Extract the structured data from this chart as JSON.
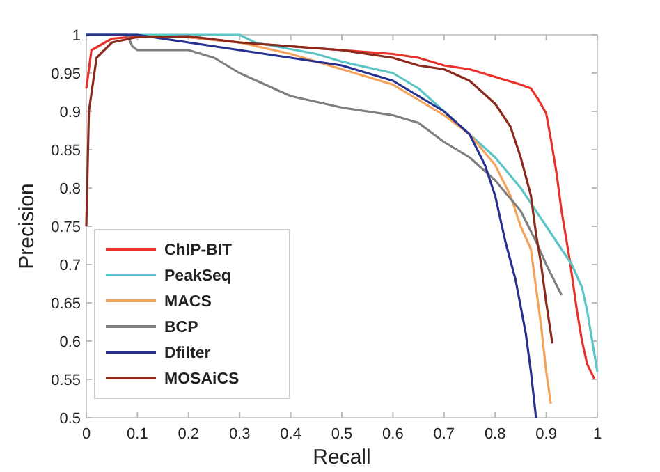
{
  "chart_data": {
    "type": "line",
    "xlabel": "Recall",
    "ylabel": "Precision",
    "xlim": [
      0,
      1
    ],
    "ylim": [
      0.5,
      1
    ],
    "xticks": [
      0,
      0.1,
      0.2,
      0.3,
      0.4,
      0.5,
      0.6,
      0.7,
      0.8,
      0.9,
      1
    ],
    "yticks": [
      0.5,
      0.55,
      0.6,
      0.65,
      0.7,
      0.75,
      0.8,
      0.85,
      0.9,
      0.95,
      1
    ],
    "grid": false,
    "legend": "bottom left",
    "marker": "none",
    "line_style": "solid",
    "series": [
      {
        "name": "ChIP-BIT",
        "color": "#e8312a",
        "x": [
          0,
          0.01,
          0.05,
          0.1,
          0.2,
          0.3,
          0.4,
          0.5,
          0.6,
          0.65,
          0.7,
          0.75,
          0.8,
          0.85,
          0.87,
          0.885,
          0.9,
          0.91,
          0.92,
          0.93,
          0.946,
          0.96,
          0.97,
          0.98,
          0.994
        ],
        "values": [
          0.93,
          0.98,
          0.995,
          0.998,
          0.997,
          0.99,
          0.985,
          0.98,
          0.975,
          0.97,
          0.96,
          0.955,
          0.945,
          0.935,
          0.93,
          0.915,
          0.897,
          0.86,
          0.82,
          0.77,
          0.706,
          0.64,
          0.6,
          0.57,
          0.551
        ]
      },
      {
        "name": "PeakSeq",
        "color": "#5bc4c4",
        "x": [
          0,
          0.3,
          0.33,
          0.45,
          0.5,
          0.6,
          0.65,
          0.7,
          0.75,
          0.8,
          0.85,
          0.9,
          0.93,
          0.95,
          0.97,
          0.98,
          0.99,
          1
        ],
        "values": [
          1,
          1,
          0.99,
          0.975,
          0.965,
          0.95,
          0.93,
          0.9,
          0.87,
          0.84,
          0.8,
          0.75,
          0.72,
          0.7,
          0.67,
          0.64,
          0.6,
          0.56
        ]
      },
      {
        "name": "MACS",
        "color": "#f5a35a",
        "x": [
          0.1,
          0.2,
          0.3,
          0.4,
          0.5,
          0.6,
          0.7,
          0.75,
          0.8,
          0.83,
          0.85,
          0.87,
          0.88,
          0.89,
          0.9,
          0.909
        ],
        "values": [
          0.998,
          0.997,
          0.99,
          0.975,
          0.955,
          0.935,
          0.895,
          0.87,
          0.83,
          0.79,
          0.75,
          0.72,
          0.67,
          0.62,
          0.56,
          0.518
        ]
      },
      {
        "name": "BCP",
        "color": "#7f7f7f",
        "x": [
          0,
          0.08,
          0.09,
          0.1,
          0.15,
          0.2,
          0.25,
          0.3,
          0.35,
          0.4,
          0.5,
          0.6,
          0.65,
          0.7,
          0.75,
          0.8,
          0.85,
          0.88,
          0.9,
          0.93
        ],
        "values": [
          1,
          1,
          0.985,
          0.98,
          0.98,
          0.98,
          0.97,
          0.95,
          0.935,
          0.92,
          0.905,
          0.895,
          0.885,
          0.86,
          0.84,
          0.81,
          0.77,
          0.73,
          0.7,
          0.66
        ]
      },
      {
        "name": "Dfilter",
        "color": "#27318f",
        "x": [
          0,
          0.1,
          0.2,
          0.3,
          0.4,
          0.5,
          0.6,
          0.7,
          0.75,
          0.78,
          0.8,
          0.82,
          0.84,
          0.86,
          0.87,
          0.88
        ],
        "values": [
          1,
          1,
          0.99,
          0.98,
          0.97,
          0.96,
          0.94,
          0.9,
          0.87,
          0.83,
          0.79,
          0.73,
          0.68,
          0.61,
          0.56,
          0.5
        ]
      },
      {
        "name": "MOSAiCS",
        "color": "#8b2a1c",
        "x": [
          0,
          0.005,
          0.02,
          0.05,
          0.1,
          0.2,
          0.3,
          0.4,
          0.5,
          0.6,
          0.65,
          0.7,
          0.75,
          0.8,
          0.83,
          0.85,
          0.87,
          0.88,
          0.89,
          0.9,
          0.912
        ],
        "values": [
          0.75,
          0.9,
          0.97,
          0.99,
          0.997,
          0.998,
          0.99,
          0.985,
          0.98,
          0.97,
          0.96,
          0.955,
          0.94,
          0.91,
          0.88,
          0.84,
          0.79,
          0.74,
          0.7,
          0.65,
          0.597
        ]
      }
    ]
  }
}
